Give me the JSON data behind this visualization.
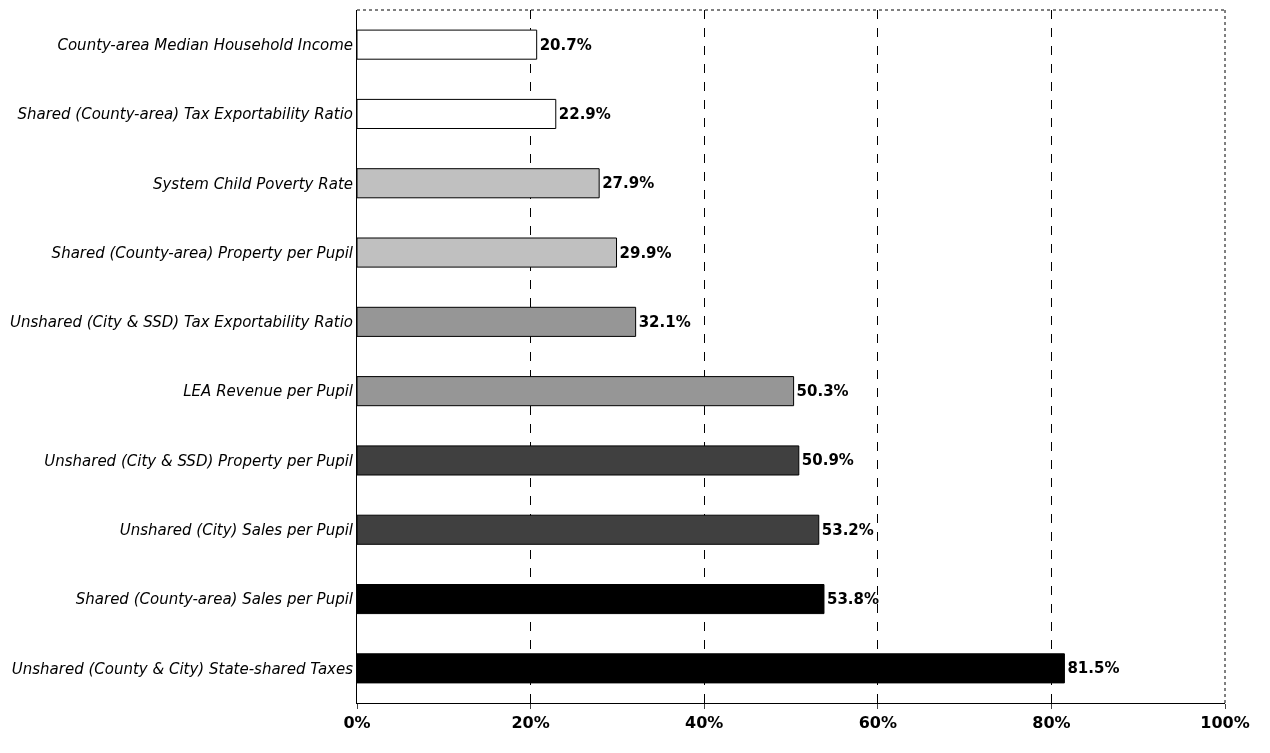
{
  "chart_data": {
    "type": "bar",
    "orientation": "horizontal",
    "categories": [
      "County-area Median Household Income",
      "Shared (County-area) Tax Exportability Ratio",
      "System Child Poverty Rate",
      "Shared (County-area) Property per Pupil",
      "Unshared (City & SSD) Tax Exportability Ratio",
      "LEA Revenue per Pupil",
      "Unshared (City & SSD) Property per Pupil",
      "Unshared (City) Sales per Pupil",
      "Shared (County-area) Sales per Pupil",
      "Unshared (County & City) State-shared Taxes"
    ],
    "values": [
      20.7,
      22.9,
      27.9,
      29.9,
      32.1,
      50.3,
      50.9,
      53.2,
      53.8,
      81.5
    ],
    "value_labels": [
      "20.7%",
      "22.9%",
      "27.9%",
      "29.9%",
      "32.1%",
      "50.3%",
      "50.9%",
      "53.2%",
      "53.8%",
      "81.5%"
    ],
    "colors": [
      "#ffffff",
      "#ffffff",
      "#c0c0c0",
      "#c0c0c0",
      "#969696",
      "#969696",
      "#404040",
      "#404040",
      "#000000",
      "#000000"
    ],
    "xlim": [
      0,
      100
    ],
    "xticks": [
      {
        "value": 0,
        "label": "0%"
      },
      {
        "value": 20,
        "label": "20%"
      },
      {
        "value": 40,
        "label": "40%"
      },
      {
        "value": 60,
        "label": "60%"
      },
      {
        "value": 80,
        "label": "80%"
      },
      {
        "value": 100,
        "label": "100%"
      }
    ],
    "grid": "x",
    "legend": false
  }
}
